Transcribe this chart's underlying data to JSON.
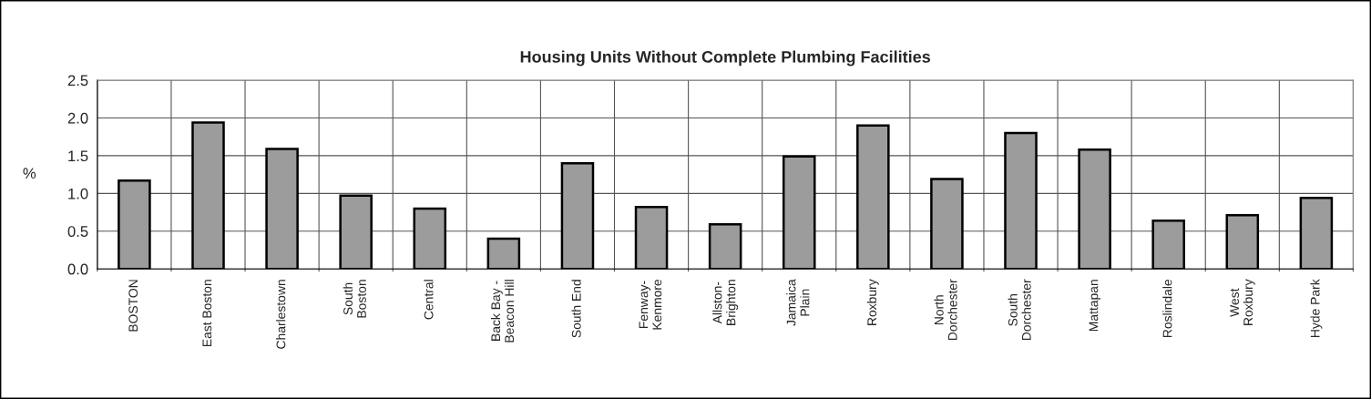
{
  "chart_data": {
    "type": "bar",
    "title": "Housing Units Without Complete Plumbing Facilities",
    "ylabel": "%",
    "categories": [
      "BOSTON",
      "East Boston",
      "Charlestown",
      "South\nBoston",
      "Central",
      "Back Bay -\nBeacon Hill",
      "South End",
      "Fenway-\nKenmore",
      "Allston-\nBrighton",
      "Jamaica\nPlain",
      "Roxbury",
      "North\nDorchester",
      "South\nDorchester",
      "Mattapan",
      "Roslindale",
      "West\nRoxbury",
      "Hyde Park"
    ],
    "values": [
      1.17,
      1.94,
      1.59,
      0.97,
      0.8,
      0.4,
      1.4,
      0.82,
      0.59,
      1.49,
      1.9,
      1.19,
      1.8,
      1.58,
      0.64,
      0.71,
      0.94
    ],
    "color": "#9c9c9c",
    "ylim": [
      0,
      2.5
    ],
    "yticks": [
      {
        "value": 0,
        "label": "0.0"
      },
      {
        "value": 0.5,
        "label": "0.5"
      },
      {
        "value": 1,
        "label": "1.0"
      },
      {
        "value": 1.5,
        "label": "1.5"
      },
      {
        "value": 2,
        "label": "2.0"
      },
      {
        "value": 2.5,
        "label": "2.5"
      }
    ],
    "grid": true,
    "legend": false
  }
}
